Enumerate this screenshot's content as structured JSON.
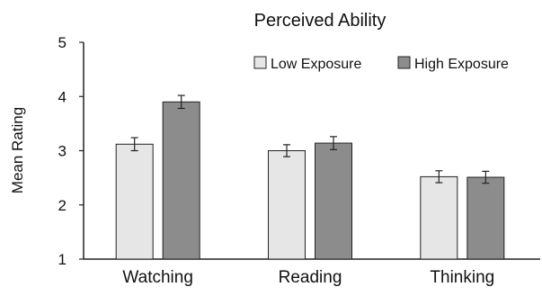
{
  "chart_data": {
    "type": "bar",
    "title": "Perceived Ability",
    "xlabel": "",
    "ylabel": "Mean Rating",
    "ylim": [
      1,
      5
    ],
    "yticks": [
      1,
      2,
      3,
      4,
      5
    ],
    "categories": [
      "Watching",
      "Reading",
      "Thinking"
    ],
    "series": [
      {
        "name": "Low Exposure",
        "color": "#e6e6e6",
        "values": [
          3.12,
          3.0,
          2.52
        ],
        "errors": [
          0.12,
          0.11,
          0.11
        ]
      },
      {
        "name": "High Exposure",
        "color": "#8c8c8c",
        "values": [
          3.9,
          3.14,
          2.51
        ],
        "errors": [
          0.12,
          0.12,
          0.11
        ]
      }
    ],
    "grid": false,
    "legend_position": "top-right"
  }
}
